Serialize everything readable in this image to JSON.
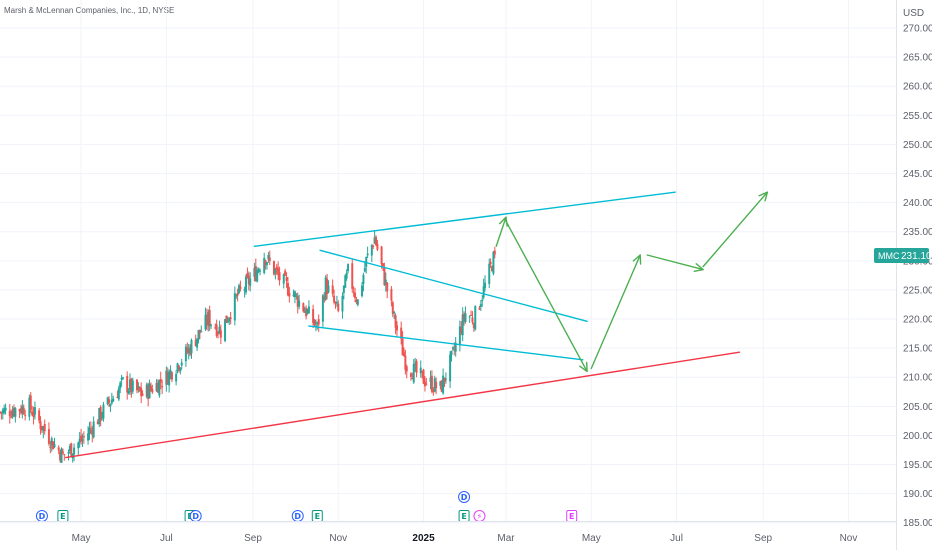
{
  "header": {
    "title": "Marsh & McLennan Companies, Inc., 1D, NYSE"
  },
  "axis": {
    "currency": "USD",
    "price_ticks": [
      "185.00",
      "190.00",
      "195.00",
      "200.00",
      "205.00",
      "210.00",
      "215.00",
      "220.00",
      "225.00",
      "230.00",
      "235.00",
      "240.00",
      "245.00",
      "250.00",
      "255.00",
      "260.00",
      "265.00",
      "270.00"
    ],
    "time_ticks": [
      {
        "label": "May",
        "bold": false
      },
      {
        "label": "Jul",
        "bold": false
      },
      {
        "label": "Sep",
        "bold": false
      },
      {
        "label": "Nov",
        "bold": false
      },
      {
        "label": "2025",
        "bold": true
      },
      {
        "label": "Mar",
        "bold": false
      },
      {
        "label": "May",
        "bold": false
      },
      {
        "label": "Jul",
        "bold": false
      },
      {
        "label": "Sep",
        "bold": false
      },
      {
        "label": "Nov",
        "bold": false
      }
    ]
  },
  "badge": {
    "symbol": "MMC",
    "price": "231.10",
    "color": "#26a69a"
  },
  "colors": {
    "up": "#26a69a",
    "down": "#ef5350",
    "channel": "#00bcd4",
    "support": "#f23645",
    "arrows": "#4caf50",
    "grid": "#f0f3fa",
    "dividend": "#2962ff",
    "earnings": "#089981",
    "split": "#e040fb"
  },
  "events": [
    {
      "type": "dividend",
      "glyph": "D",
      "date": "2024-04-03"
    },
    {
      "type": "earnings",
      "glyph": "E",
      "date": "2024-04-18"
    },
    {
      "type": "earnings",
      "glyph": "E",
      "date": "2024-07-18"
    },
    {
      "type": "dividend",
      "glyph": "D",
      "date": "2024-07-22"
    },
    {
      "type": "dividend",
      "glyph": "D",
      "date": "2024-10-03"
    },
    {
      "type": "earnings",
      "glyph": "E",
      "date": "2024-10-17"
    },
    {
      "type": "dividend",
      "glyph": "D",
      "date": "2025-01-30",
      "stacked": true
    },
    {
      "type": "earnings",
      "glyph": "E",
      "date": "2025-01-30"
    },
    {
      "type": "split",
      "glyph": "⚡",
      "date": "2025-02-10"
    },
    {
      "type": "earnings-upcoming",
      "glyph": "E",
      "date": "2025-04-17"
    }
  ],
  "chart_data": {
    "type": "candlestick",
    "title": "Marsh & McLennan Companies, Inc., 1D, NYSE",
    "ylim": [
      184,
      275
    ],
    "x_range": [
      "2024-03-04",
      "2025-12-05"
    ],
    "legend": "none",
    "grid": true,
    "last_price": 231.1,
    "price_path": [
      [
        "2024-03-04",
        204
      ],
      [
        "2024-03-25",
        205
      ],
      [
        "2024-04-10",
        199
      ],
      [
        "2024-04-18",
        196.5
      ],
      [
        "2024-05-03",
        199.5
      ],
      [
        "2024-05-31",
        209
      ],
      [
        "2024-06-14",
        207
      ],
      [
        "2024-07-01",
        210
      ],
      [
        "2024-07-15",
        214
      ],
      [
        "2024-07-31",
        220
      ],
      [
        "2024-08-09",
        218
      ],
      [
        "2024-08-21",
        224
      ],
      [
        "2024-09-03",
        228
      ],
      [
        "2024-09-09",
        231
      ],
      [
        "2024-09-20",
        227
      ],
      [
        "2024-10-01",
        224
      ],
      [
        "2024-10-10",
        221
      ],
      [
        "2024-10-17",
        218.5
      ],
      [
        "2024-10-23",
        226
      ],
      [
        "2024-11-01",
        221
      ],
      [
        "2024-11-08",
        228
      ],
      [
        "2024-11-15",
        223
      ],
      [
        "2024-11-21",
        230
      ],
      [
        "2024-11-27",
        234
      ],
      [
        "2024-12-05",
        226
      ],
      [
        "2024-12-12",
        219
      ],
      [
        "2024-12-20",
        212
      ],
      [
        "2025-01-02",
        209.5
      ],
      [
        "2025-01-13",
        208
      ],
      [
        "2025-01-21",
        213
      ],
      [
        "2025-01-27",
        218
      ],
      [
        "2025-01-31",
        221
      ],
      [
        "2025-02-06",
        220
      ],
      [
        "2025-02-13",
        225
      ],
      [
        "2025-02-21",
        231.1
      ]
    ],
    "drawings": [
      {
        "name": "upper-channel-line",
        "color": "channel",
        "points": [
          [
            "2024-09-02",
            232.5
          ],
          [
            "2025-06-30",
            241.8
          ]
        ]
      },
      {
        "name": "inner-channel-top",
        "color": "channel",
        "points": [
          [
            "2024-10-19",
            231.8
          ],
          [
            "2025-04-28",
            219.6
          ]
        ]
      },
      {
        "name": "inner-channel-bottom",
        "color": "channel",
        "points": [
          [
            "2024-10-11",
            218.8
          ],
          [
            "2025-04-25",
            213
          ]
        ]
      },
      {
        "name": "support-trendline",
        "color": "support",
        "points": [
          [
            "2024-04-20",
            196.2
          ],
          [
            "2025-08-15",
            214.3
          ]
        ]
      },
      {
        "name": "projection-arrow-1",
        "color": "arrows",
        "points": [
          [
            "2025-02-22",
            232.5
          ],
          [
            "2025-03-01",
            237.5
          ]
        ]
      },
      {
        "name": "projection-arrow-2",
        "color": "arrows",
        "points": [
          [
            "2025-03-01",
            236.8
          ],
          [
            "2025-04-28",
            211
          ]
        ]
      },
      {
        "name": "projection-arrow-3",
        "color": "arrows",
        "points": [
          [
            "2025-05-01",
            211.5
          ],
          [
            "2025-06-05",
            231
          ]
        ]
      },
      {
        "name": "projection-arrow-4",
        "color": "arrows",
        "points": [
          [
            "2025-06-10",
            231
          ],
          [
            "2025-07-20",
            228.5
          ]
        ]
      },
      {
        "name": "projection-arrow-5",
        "color": "arrows",
        "points": [
          [
            "2025-07-20",
            229
          ],
          [
            "2025-09-04",
            241.8
          ]
        ]
      }
    ]
  }
}
